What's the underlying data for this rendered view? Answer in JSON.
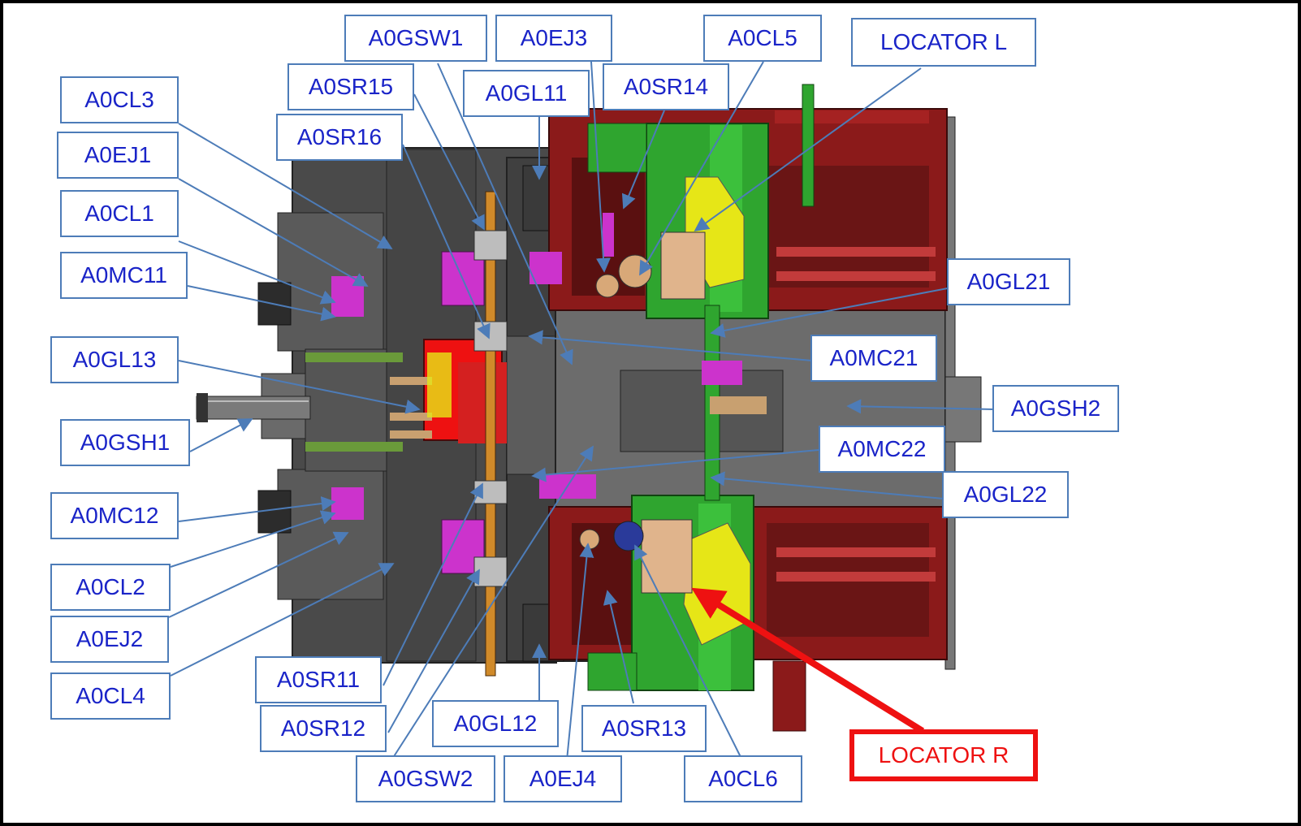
{
  "colors": {
    "callout_text": "#1a24c8",
    "callout_border": "#4d7cb8",
    "leader": "#4d7cb8",
    "highlight": "#ee1111",
    "plate": "#4a4a4a",
    "frame_red": "#8b1a1a",
    "clamp_green": "#2fa52f",
    "locator_yellow": "#e6e617",
    "slide_magenta": "#cc33cc",
    "block_tan": "#e0b48c"
  },
  "labels": {
    "a0cl3": "A0CL3",
    "a0ej1": "A0EJ1",
    "a0cl1": "A0CL1",
    "a0mc11": "A0MC11",
    "a0gl13": "A0GL13",
    "a0gsh1": "A0GSH1",
    "a0mc12": "A0MC12",
    "a0cl2": "A0CL2",
    "a0ej2": "A0EJ2",
    "a0cl4": "A0CL4",
    "a0sr15": "A0SR15",
    "a0sr16": "A0SR16",
    "a0gsw1": "A0GSW1",
    "a0ej3": "A0EJ3",
    "a0gl11": "A0GL11",
    "a0sr14": "A0SR14",
    "a0cl5": "A0CL5",
    "locator_l": "LOCATOR L",
    "a0gl21": "A0GL21",
    "a0mc21": "A0MC21",
    "a0gsh2": "A0GSH2",
    "a0mc22": "A0MC22",
    "a0gl22": "A0GL22",
    "a0sr11": "A0SR11",
    "a0sr12": "A0SR12",
    "a0gsw2": "A0GSW2",
    "a0gl12": "A0GL12",
    "a0ej4": "A0EJ4",
    "a0sr13": "A0SR13",
    "a0cl6": "A0CL6",
    "locator_r": "LOCATOR R"
  }
}
